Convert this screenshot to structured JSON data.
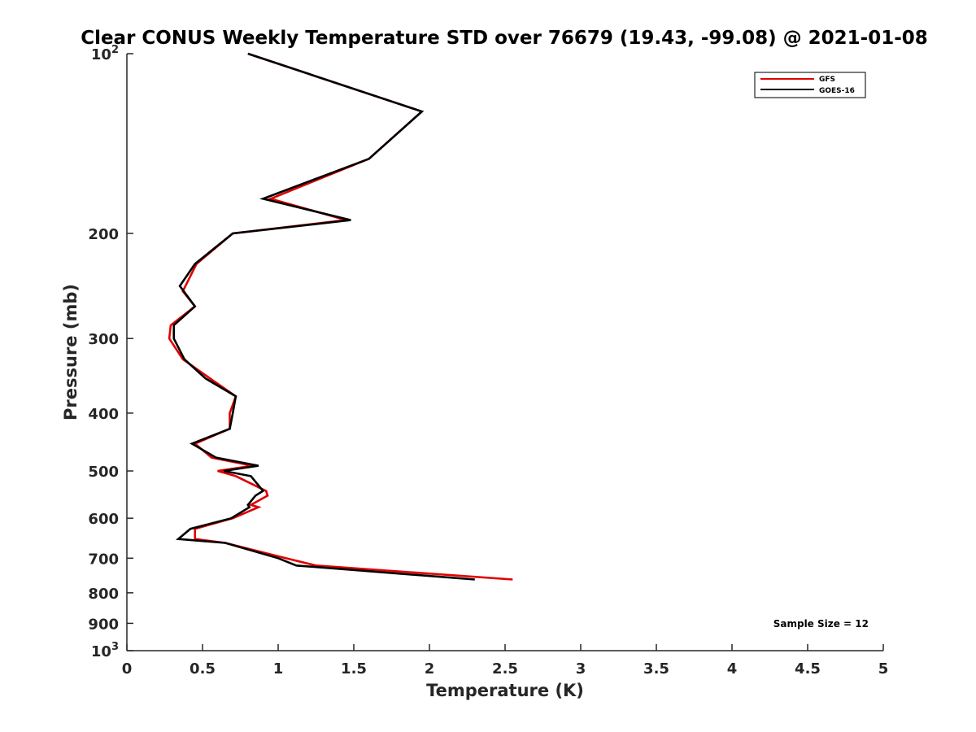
{
  "chart_data": {
    "type": "line",
    "title": "Clear CONUS Weekly Temperature STD over 76679 (19.43, -99.08) @ 2021-01-08",
    "xlabel": "Temperature (K)",
    "ylabel": "Pressure (mb)",
    "xlim": [
      0,
      5
    ],
    "ylim": [
      100,
      1000
    ],
    "y_scale": "log",
    "y_reversed": true,
    "grid": false,
    "legend_position": "top-right",
    "x_ticks": [
      0,
      0.5,
      1,
      1.5,
      2,
      2.5,
      3,
      3.5,
      4,
      4.5,
      5
    ],
    "x_tick_labels": [
      "0",
      "0.5",
      "1",
      "1.5",
      "2",
      "2.5",
      "3",
      "3.5",
      "4",
      "4.5",
      "5"
    ],
    "y_ticks": [
      100,
      200,
      300,
      400,
      500,
      600,
      700,
      800,
      900,
      1000
    ],
    "y_tick_labels": [
      {
        "base": "10",
        "sup": "2"
      },
      {
        "base": "200",
        "sup": ""
      },
      {
        "base": "300",
        "sup": ""
      },
      {
        "base": "400",
        "sup": ""
      },
      {
        "base": "500",
        "sup": ""
      },
      {
        "base": "600",
        "sup": ""
      },
      {
        "base": "700",
        "sup": ""
      },
      {
        "base": "800",
        "sup": ""
      },
      {
        "base": "900",
        "sup": ""
      },
      {
        "base": "10",
        "sup": "3"
      }
    ],
    "series": [
      {
        "name": "GFS",
        "color": "#e00000",
        "points": [
          [
            0.8,
            100
          ],
          [
            1.95,
            125
          ],
          [
            1.6,
            150
          ],
          [
            0.95,
            175
          ],
          [
            1.45,
            190
          ],
          [
            0.7,
            200
          ],
          [
            0.46,
            225
          ],
          [
            0.37,
            250
          ],
          [
            0.45,
            265
          ],
          [
            0.29,
            285
          ],
          [
            0.28,
            300
          ],
          [
            0.37,
            325
          ],
          [
            0.55,
            350
          ],
          [
            0.72,
            375
          ],
          [
            0.68,
            400
          ],
          [
            0.68,
            425
          ],
          [
            0.45,
            450
          ],
          [
            0.56,
            475
          ],
          [
            0.83,
            490
          ],
          [
            0.6,
            500
          ],
          [
            0.72,
            510
          ],
          [
            0.92,
            540
          ],
          [
            0.93,
            550
          ],
          [
            0.82,
            570
          ],
          [
            0.87,
            575
          ],
          [
            0.7,
            600
          ],
          [
            0.45,
            625
          ],
          [
            0.45,
            650
          ],
          [
            0.65,
            660
          ],
          [
            1.05,
            700
          ],
          [
            1.25,
            720
          ],
          [
            2.55,
            760
          ]
        ]
      },
      {
        "name": "GOES-16",
        "color": "#000000",
        "points": [
          [
            0.8,
            100
          ],
          [
            1.95,
            125
          ],
          [
            1.6,
            150
          ],
          [
            0.9,
            175
          ],
          [
            1.48,
            190
          ],
          [
            0.7,
            200
          ],
          [
            0.45,
            225
          ],
          [
            0.35,
            245
          ],
          [
            0.45,
            265
          ],
          [
            0.31,
            285
          ],
          [
            0.31,
            300
          ],
          [
            0.38,
            325
          ],
          [
            0.52,
            350
          ],
          [
            0.72,
            375
          ],
          [
            0.7,
            400
          ],
          [
            0.68,
            425
          ],
          [
            0.43,
            450
          ],
          [
            0.59,
            475
          ],
          [
            0.87,
            490
          ],
          [
            0.64,
            500
          ],
          [
            0.82,
            510
          ],
          [
            0.9,
            540
          ],
          [
            0.85,
            550
          ],
          [
            0.8,
            570
          ],
          [
            0.81,
            575
          ],
          [
            0.69,
            600
          ],
          [
            0.42,
            625
          ],
          [
            0.34,
            650
          ],
          [
            0.65,
            660
          ],
          [
            1.0,
            700
          ],
          [
            1.12,
            720
          ],
          [
            2.3,
            760
          ]
        ]
      }
    ],
    "annotations": [
      {
        "text": "Sample Size = 12"
      }
    ]
  }
}
